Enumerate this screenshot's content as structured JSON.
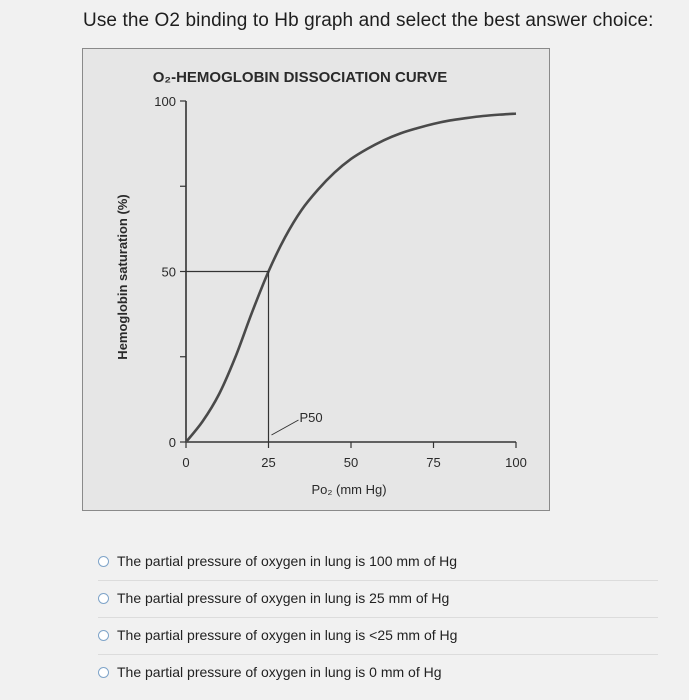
{
  "question": {
    "text": "Use the O2 binding to Hb graph and select the best answer choice:"
  },
  "chart_data": {
    "type": "line",
    "title": "O₂-HEMOGLOBIN DISSOCIATION CURVE",
    "xlabel": "Po₂ (mm Hg)",
    "ylabel": "Hemoglobin saturation (%)",
    "xlim": [
      0,
      100
    ],
    "ylim": [
      0,
      100
    ],
    "x_ticks": [
      "0",
      "25",
      "50",
      "75",
      "100"
    ],
    "y_ticks": [
      "0",
      "50",
      "100"
    ],
    "series": [
      {
        "x": [
          0,
          5,
          10,
          15,
          20,
          25,
          30,
          35,
          40,
          45,
          50,
          55,
          60,
          65,
          70,
          75,
          80,
          85,
          90,
          95,
          100
        ],
        "y": [
          0,
          6,
          14,
          25,
          38,
          50,
          60,
          68,
          74,
          79,
          83,
          86,
          88.5,
          90.5,
          92,
          93.3,
          94.3,
          95,
          95.6,
          96,
          96.3
        ]
      }
    ],
    "annotations": [
      {
        "label": "P50",
        "x": 25,
        "y": 50
      }
    ],
    "colors": {
      "curve": "#4a4a4a",
      "axis": "#333333"
    }
  },
  "options": [
    {
      "label": "The partial pressure of oxygen in lung is 100 mm of Hg"
    },
    {
      "label": "The partial pressure of oxygen in lung is 25 mm of Hg"
    },
    {
      "label": "The partial pressure of oxygen in lung is <25 mm of Hg"
    },
    {
      "label": "The partial pressure of oxygen in lung is 0 mm of Hg"
    }
  ]
}
